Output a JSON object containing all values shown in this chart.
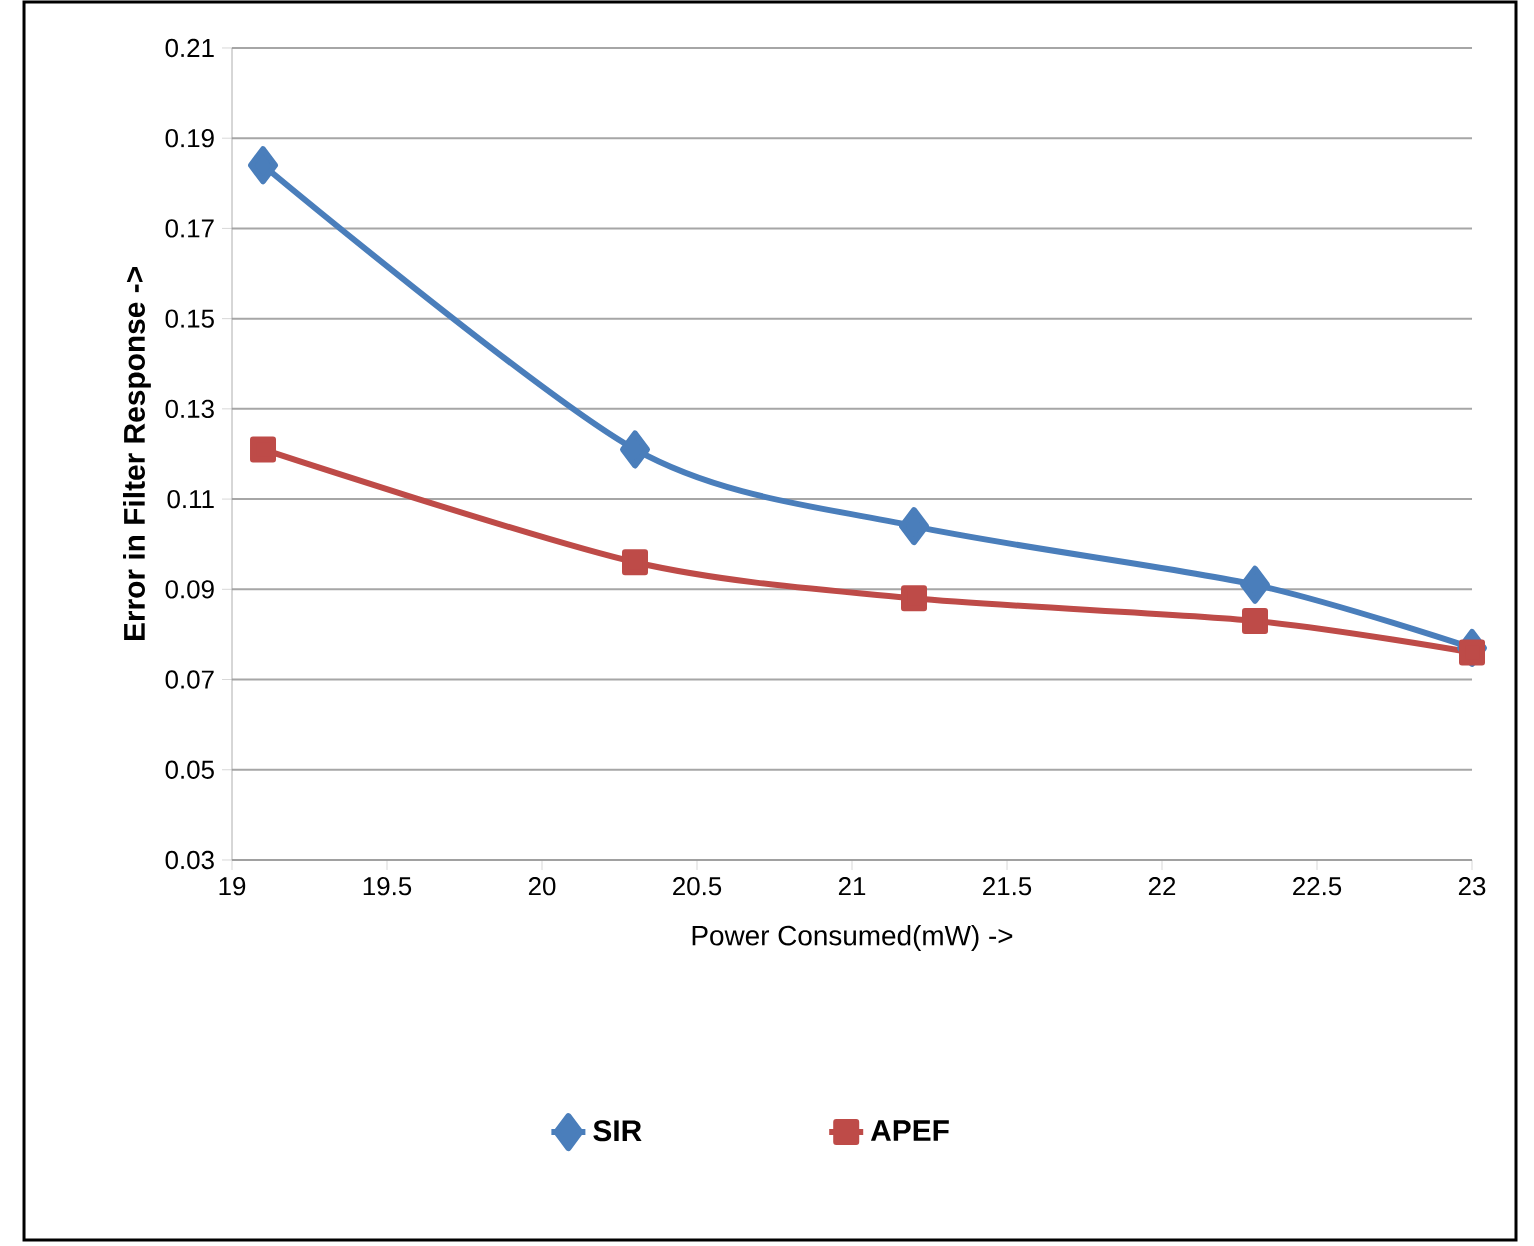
{
  "chart_data": {
    "type": "line",
    "xlabel": "Power Consumed(mW) ->",
    "ylabel": "Error in Filter Response ->",
    "xlim": [
      19,
      23
    ],
    "xticks": [
      19,
      19.5,
      20,
      20.5,
      21,
      21.5,
      22,
      22.5,
      23
    ],
    "ylim": [
      0.03,
      0.21
    ],
    "yticks": [
      0.03,
      0.05,
      0.07,
      0.09,
      0.11,
      0.13,
      0.15,
      0.17,
      0.19,
      0.21
    ],
    "grid": "y",
    "legend": "bottom",
    "line_style": "solid",
    "x": [
      19.1,
      20.3,
      21.2,
      22.3,
      23
    ],
    "series": [
      {
        "name": "SIR",
        "color": "#4a7ebb",
        "marker": "diamond",
        "values": [
          0.184,
          0.121,
          0.104,
          0.091,
          0.077
        ]
      },
      {
        "name": "APEF",
        "color": "#be4b48",
        "marker": "square",
        "values": [
          0.121,
          0.096,
          0.088,
          0.083,
          0.076
        ]
      }
    ]
  }
}
